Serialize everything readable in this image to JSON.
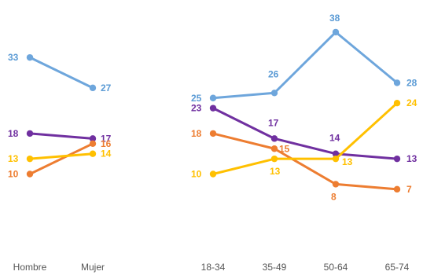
{
  "chart_data": [
    {
      "type": "line",
      "categories": [
        "Hombre",
        "Mujer"
      ],
      "series": [
        {
          "color": "#6ea6dc",
          "values": [
            33,
            27
          ]
        },
        {
          "color": "#7030a0",
          "values": [
            18,
            17
          ]
        },
        {
          "color": "#ed7d31",
          "values": [
            10,
            16
          ]
        },
        {
          "color": "#ffc000",
          "values": [
            13,
            14
          ]
        }
      ],
      "ylim": [
        0,
        40
      ],
      "grid": false,
      "legend": "none"
    },
    {
      "type": "line",
      "categories": [
        "18-34",
        "35-49",
        "50-64",
        "65-74"
      ],
      "series": [
        {
          "color": "#6ea6dc",
          "values": [
            25,
            26,
            38,
            28
          ]
        },
        {
          "color": "#7030a0",
          "values": [
            23,
            17,
            14,
            13
          ]
        },
        {
          "color": "#ed7d31",
          "values": [
            18,
            15,
            8,
            7
          ]
        },
        {
          "color": "#ffc000",
          "values": [
            10,
            13,
            13,
            24
          ]
        }
      ],
      "ylim": [
        0,
        40
      ],
      "grid": false,
      "legend": "none"
    }
  ]
}
